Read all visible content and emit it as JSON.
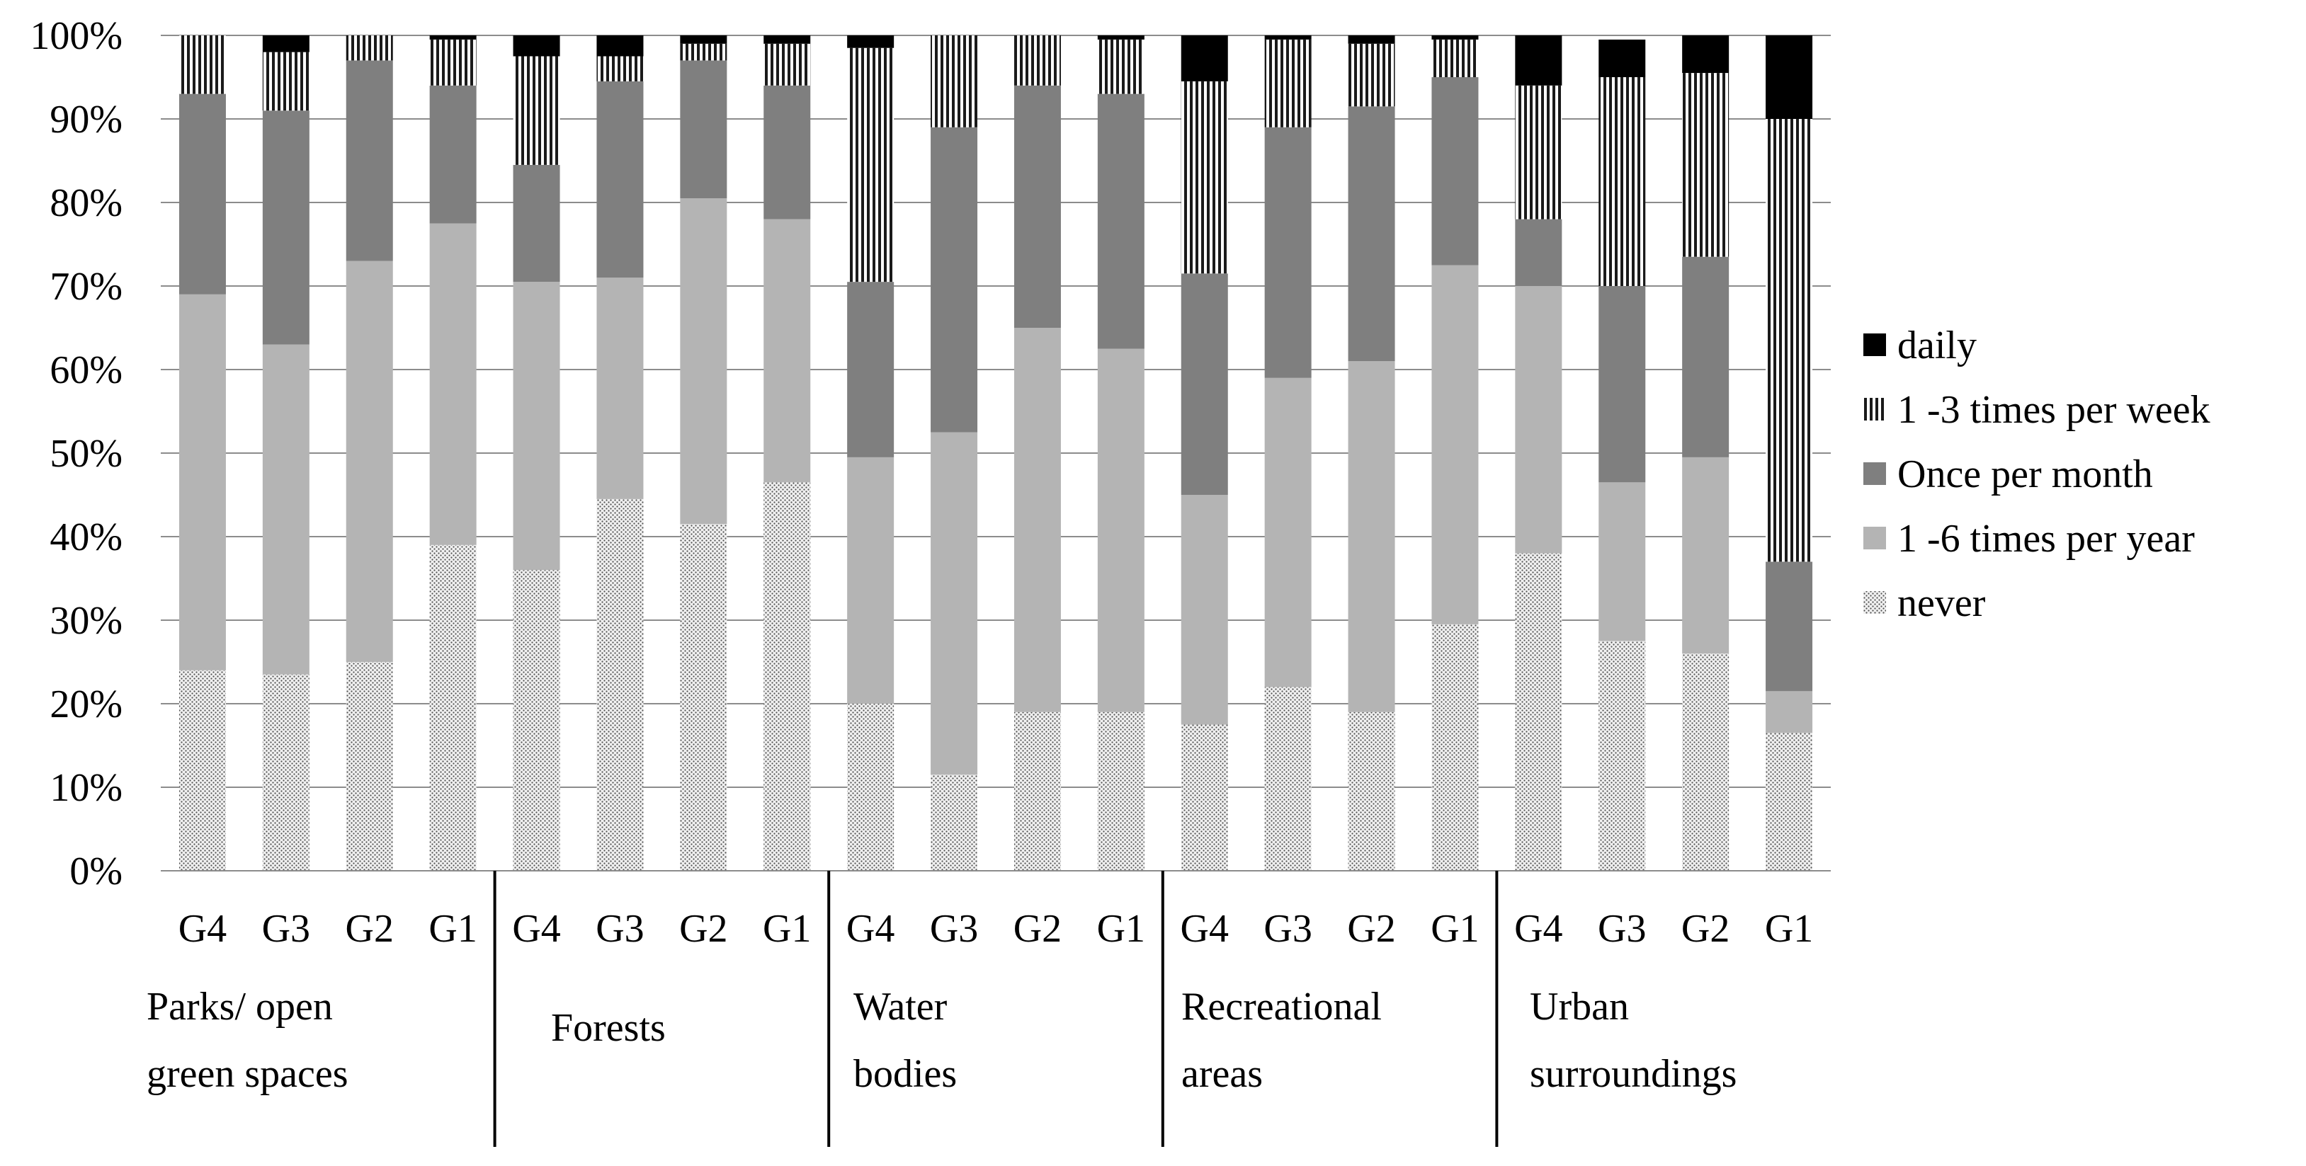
{
  "chart_data": {
    "type": "bar",
    "stacked": "percent",
    "title": "",
    "xlabel": "",
    "ylabel": "",
    "ylim": [
      0,
      100
    ],
    "y_ticks": [
      "0%",
      "10%",
      "20%",
      "30%",
      "40%",
      "50%",
      "60%",
      "70%",
      "80%",
      "90%",
      "100%"
    ],
    "grid": true,
    "legend_position": "right",
    "groups": [
      {
        "label_lines": [
          "Parks/ open",
          "green spaces"
        ],
        "categories": [
          "G4",
          "G3",
          "G2",
          "G1"
        ]
      },
      {
        "label_lines": [
          "Forests"
        ],
        "categories": [
          "G4",
          "G3",
          "G2",
          "G1"
        ]
      },
      {
        "label_lines": [
          "Water",
          "bodies"
        ],
        "categories": [
          "G4",
          "G3",
          "G2",
          "G1"
        ]
      },
      {
        "label_lines": [
          "Recreational",
          "areas"
        ],
        "categories": [
          "G4",
          "G3",
          "G2",
          "G1"
        ]
      },
      {
        "label_lines": [
          "Urban",
          "surroundings"
        ],
        "categories": [
          "G4",
          "G3",
          "G2",
          "G1"
        ]
      }
    ],
    "series": [
      {
        "name": "never",
        "pattern": "dots",
        "color": "#dcdcdc",
        "values": [
          24,
          23.5,
          25,
          39,
          36,
          44.5,
          41.5,
          46.5,
          20,
          11.5,
          19,
          19,
          17.5,
          22,
          19,
          29.5,
          38,
          27.5,
          26,
          16.5
        ]
      },
      {
        "name": "1 -6 times per year",
        "pattern": "solid",
        "color": "#b4b4b4",
        "values": [
          45,
          39.5,
          48,
          38.5,
          34.5,
          26.5,
          39,
          31.5,
          29.5,
          41,
          46,
          43.5,
          27.5,
          37,
          42,
          43,
          32,
          19,
          23.5,
          5
        ]
      },
      {
        "name": "Once per month",
        "pattern": "solid",
        "color": "#7f7f7f",
        "values": [
          24,
          28,
          24,
          16.5,
          14,
          23.5,
          16.5,
          16,
          21,
          36.5,
          29,
          30.5,
          26.5,
          30,
          30.5,
          22.5,
          8,
          23.5,
          24,
          15.5
        ]
      },
      {
        "name": "1 -3 times per week",
        "pattern": "vlines",
        "color": "#3c3c3c",
        "values": [
          7,
          7,
          3,
          5.5,
          13,
          3,
          2,
          5,
          28,
          11,
          6,
          6.5,
          23,
          10.5,
          7.5,
          4.5,
          16,
          25,
          22,
          53
        ]
      },
      {
        "name": "daily",
        "pattern": "solid",
        "color": "#000000",
        "values": [
          0,
          2,
          0,
          0.5,
          2.5,
          2.5,
          1,
          1,
          1.5,
          0,
          0,
          0.5,
          5.5,
          0.5,
          1,
          0.5,
          6,
          4.5,
          4.5,
          10
        ]
      }
    ]
  }
}
